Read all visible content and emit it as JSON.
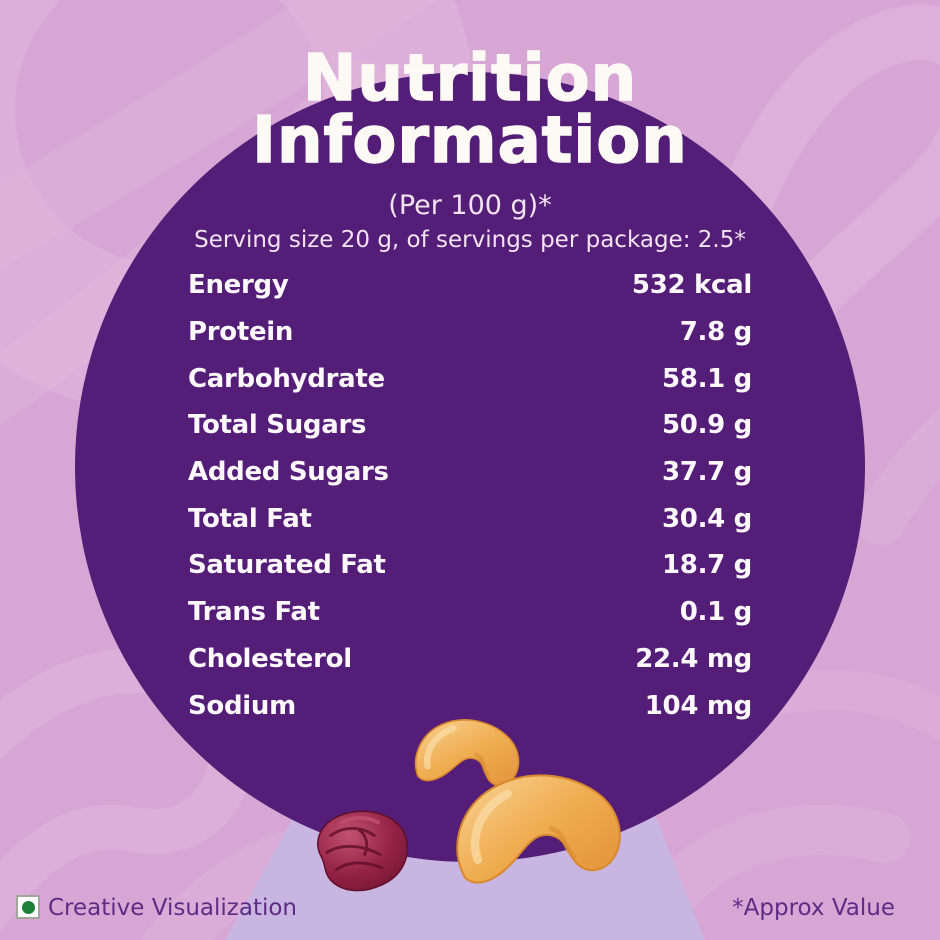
{
  "title": {
    "line1": "Nutrition",
    "line2": "Information"
  },
  "subtitle": {
    "per": "(Per 100 g)*",
    "serving": "Serving size 20 g, of servings per package: 2.5*"
  },
  "nutrition": {
    "rows": [
      {
        "label": "Energy",
        "value": "532 kcal"
      },
      {
        "label": "Protein",
        "value": "7.8 g"
      },
      {
        "label": "Carbohydrate",
        "value": "58.1 g"
      },
      {
        "label": "Total Sugars",
        "value": "50.9 g"
      },
      {
        "label": "Added Sugars",
        "value": "37.7 g"
      },
      {
        "label": "Total Fat",
        "value": "30.4 g"
      },
      {
        "label": "Saturated Fat",
        "value": "18.7 g"
      },
      {
        "label": "Trans Fat",
        "value": "0.1 g"
      },
      {
        "label": "Cholesterol",
        "value": "22.4 mg"
      },
      {
        "label": "Sodium",
        "value": "104 mg"
      }
    ]
  },
  "footer": {
    "veg_label": "Creative Visualization",
    "approx_note": "*Approx Value"
  },
  "icons": {
    "veg_mark": "green-dot-in-white-square (vegetarian mark)",
    "illustration": "two roasted cashews and one raisin"
  },
  "colors": {
    "background": "#d8a6d4",
    "bg_swirl": "#e3b7df",
    "bg_wedge": "#c7b5e1",
    "circle_purple": "#531d78",
    "title_text": "#fdfaf5",
    "sub_text": "#f2e3f1",
    "row_text": "#fdf8fc",
    "footer_text": "#5e2c87",
    "veg_green": "#1e8038"
  }
}
